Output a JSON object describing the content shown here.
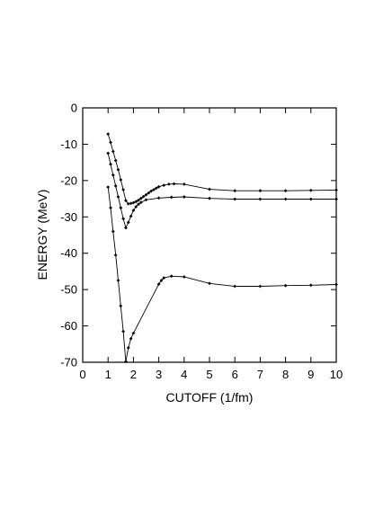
{
  "chart_data": {
    "type": "line",
    "title": "",
    "xlabel": "CUTOFF  (1/fm)",
    "ylabel": "ENERGY  (MeV)",
    "xlim": [
      0,
      10
    ],
    "ylim": [
      -70,
      0
    ],
    "xticks": [
      "0",
      "1",
      "2",
      "3",
      "4",
      "5",
      "6",
      "7",
      "8",
      "9",
      "10"
    ],
    "yticks": [
      "0",
      "-10",
      "-20",
      "-30",
      "-40",
      "-50",
      "-60",
      "-70"
    ],
    "grid": false,
    "legend": "none",
    "marker": "diamond",
    "series": [
      {
        "x": [
          1.0,
          1.1,
          1.2,
          1.3,
          1.4,
          1.5,
          1.6,
          1.7,
          1.8,
          1.9,
          2.0,
          2.1,
          2.2,
          2.3,
          2.4,
          2.5,
          2.6,
          2.7,
          2.8,
          2.9,
          3.0,
          3.2,
          3.4,
          3.6,
          4.0,
          5.0,
          6.0,
          7.0,
          8.0,
          9.0,
          10.0
        ],
        "y": [
          -7.2,
          -9.5,
          -12.0,
          -14.5,
          -17.0,
          -19.8,
          -22.5,
          -25.5,
          -26.4,
          -26.3,
          -26.1,
          -25.8,
          -25.4,
          -24.9,
          -24.4,
          -23.9,
          -23.4,
          -22.9,
          -22.5,
          -22.1,
          -21.7,
          -21.3,
          -21.0,
          -20.9,
          -21.0,
          -22.4,
          -22.8,
          -22.8,
          -22.8,
          -22.7,
          -22.6
        ]
      },
      {
        "x": [
          1.0,
          1.1,
          1.2,
          1.3,
          1.4,
          1.5,
          1.6,
          1.7,
          1.8,
          1.9,
          2.0,
          2.1,
          2.2,
          2.3,
          2.5,
          3.0,
          3.5,
          4.0,
          5.0,
          6.0,
          7.0,
          8.0,
          9.0,
          10.0
        ],
        "y": [
          -12.5,
          -15.5,
          -18.5,
          -21.5,
          -24.5,
          -27.5,
          -30.5,
          -33.0,
          -31.5,
          -29.8,
          -28.2,
          -27.2,
          -26.5,
          -26.0,
          -25.3,
          -24.8,
          -24.6,
          -24.5,
          -24.9,
          -25.1,
          -25.1,
          -25.1,
          -25.1,
          -25.1
        ]
      },
      {
        "x": [
          1.0,
          1.1,
          1.2,
          1.3,
          1.4,
          1.5,
          1.6,
          1.7,
          1.8,
          1.9,
          2.0,
          3.0,
          3.1,
          3.2,
          3.5,
          4.0,
          5.0,
          6.0,
          7.0,
          8.0,
          9.0,
          10.0
        ],
        "y": [
          -21.8,
          -27.5,
          -34.0,
          -40.5,
          -47.5,
          -54.5,
          -61.5,
          -69.8,
          -66.0,
          -63.5,
          -62.0,
          -48.5,
          -47.5,
          -46.8,
          -46.3,
          -46.5,
          -48.3,
          -49.1,
          -49.1,
          -48.9,
          -48.8,
          -48.6
        ]
      }
    ]
  }
}
